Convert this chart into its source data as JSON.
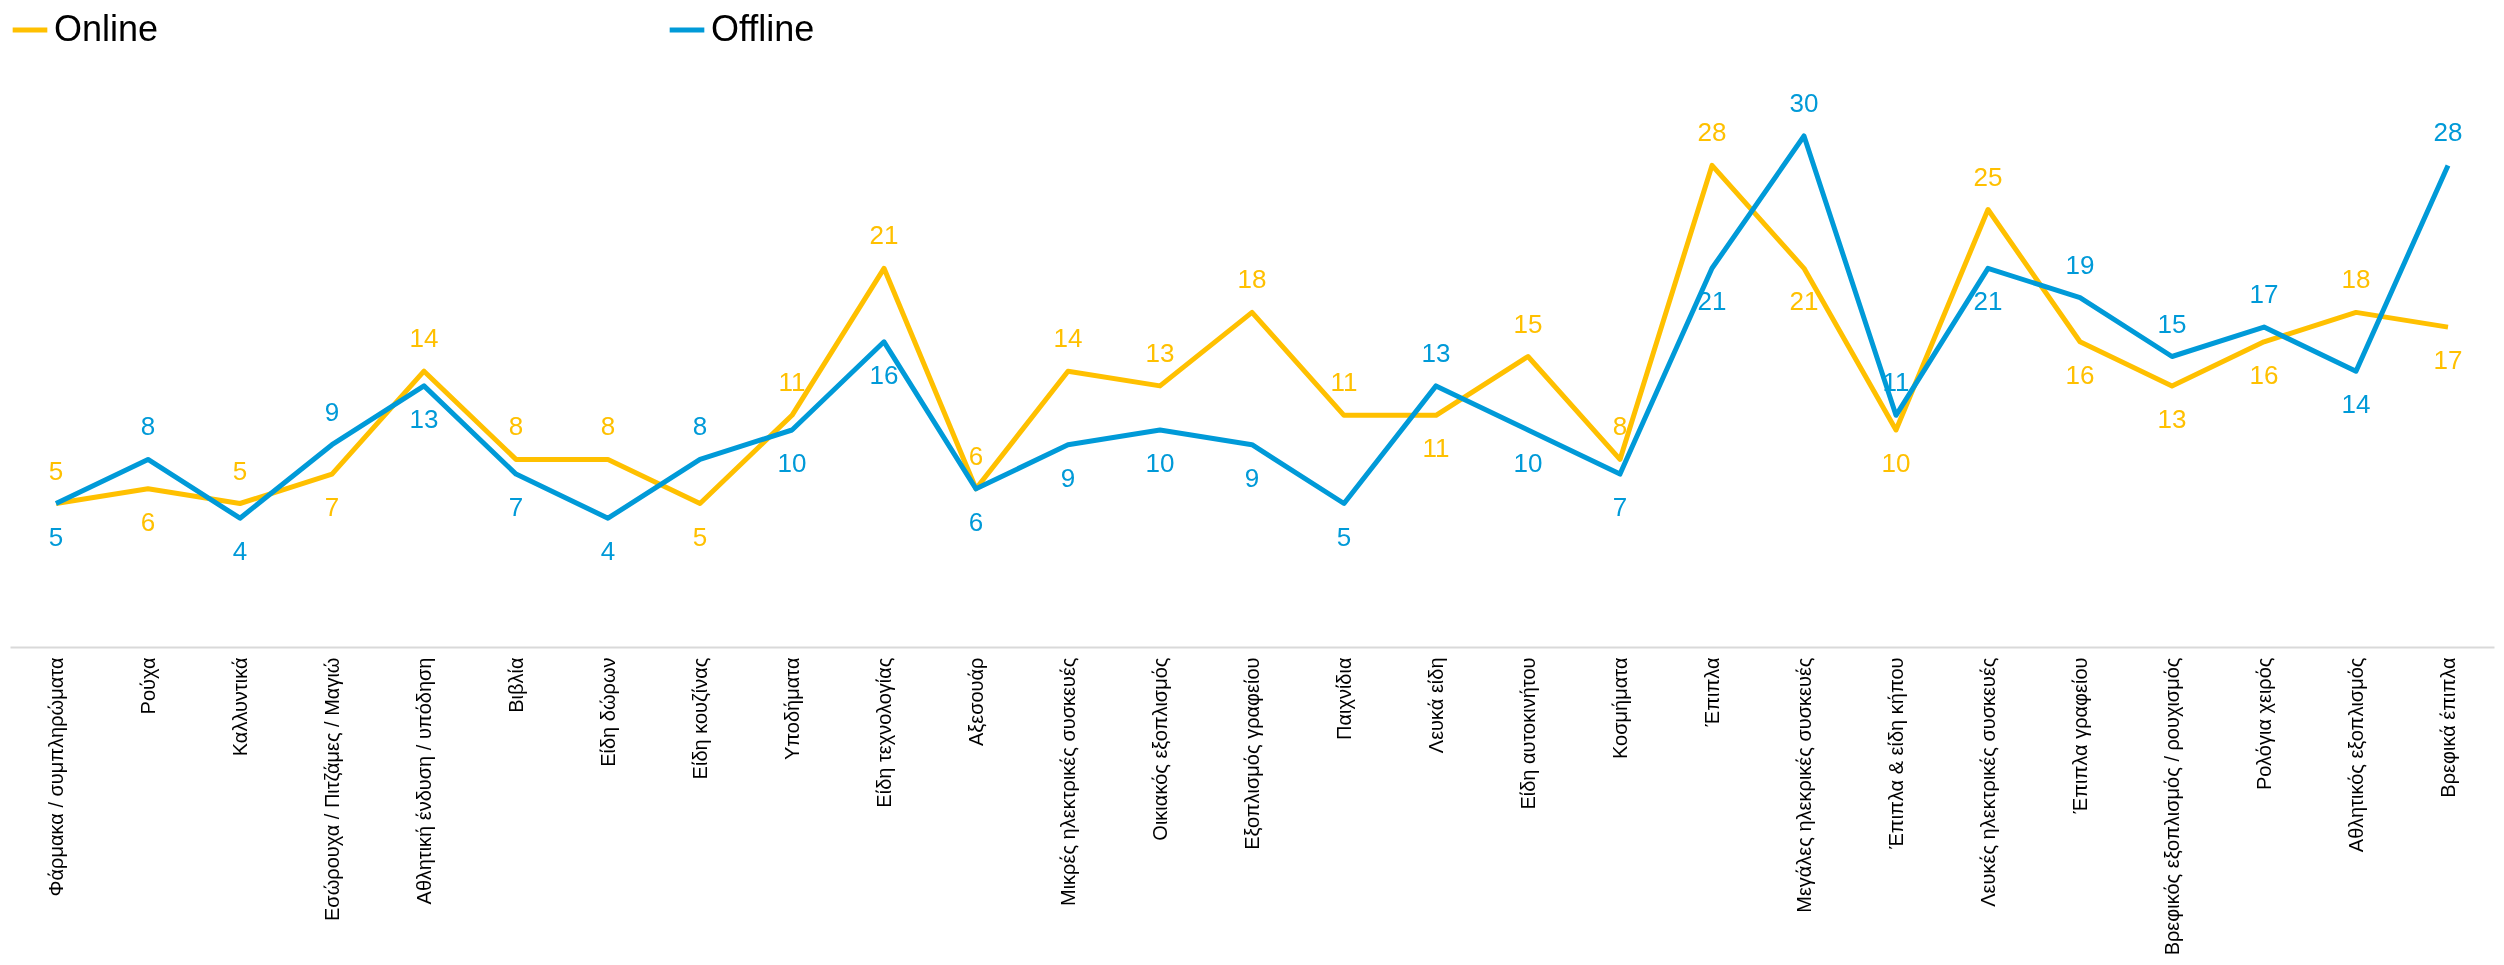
{
  "chart_data": {
    "type": "line",
    "categories": [
      "Φάρμακα / συμπληρώματα",
      "Ρούχα",
      "Καλλυντικά",
      "Εσώρουχα / Πιτζάμες / Μαγιώ",
      "Αθλητική ένδυση / υπόδηση",
      "Βιβλία",
      "Είδη δώρων",
      "Είδη κουζίνας",
      "Υποδήματα",
      "Είδη τεχνολογίας",
      "Αξεσουάρ",
      "Μικρές ηλεκτρικές συσκευές",
      "Οικιακός εξοπλισμός",
      "Εξοπλισμός γραφείου",
      "Παιχνίδια",
      "Λευκά είδη",
      "Είδη αυτοκινήτου",
      "Κοσμήματα",
      "Έπιπλα",
      "Μεγάλες ηλεκρικές συσκευές",
      "Έπιπλα & είδη κήπου",
      "Λευκές ηλεκτρικές συσκευές",
      "Έπιπλα γραφείου",
      "Βρεφικός εξοπλισμός / ρουχισμός",
      "Ρολόγια χειρός",
      "Αθλητικός εξοπλισμός",
      "Βρεφικά έπιπλα"
    ],
    "series": [
      {
        "name": "Online",
        "color": "#ffc000",
        "values": [
          5,
          6,
          5,
          7,
          14,
          8,
          8,
          5,
          11,
          21,
          6,
          14,
          13,
          18,
          11,
          11,
          15,
          8,
          28,
          21,
          10,
          25,
          16,
          13,
          16,
          18,
          17
        ]
      },
      {
        "name": "Offline",
        "color": "#009ad8",
        "values": [
          5,
          8,
          4,
          9,
          13,
          7,
          4,
          8,
          10,
          16,
          6,
          9,
          10,
          9,
          5,
          13,
          10,
          7,
          21,
          30,
          11,
          21,
          19,
          15,
          17,
          14,
          28
        ]
      }
    ],
    "tick_labels": "x",
    "data_labels": true,
    "legend": "top",
    "grid": false,
    "marker": "none",
    "line_style": "solid"
  }
}
